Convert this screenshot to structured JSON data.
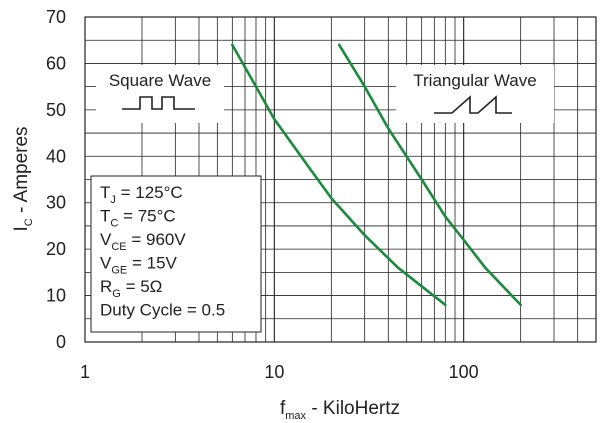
{
  "chart_data": {
    "type": "line",
    "title": "",
    "xscale": "log",
    "xlim": [
      1,
      500
    ],
    "ylim": [
      0,
      70
    ],
    "grid": true,
    "x_ticks": [
      {
        "value": 1,
        "label": "1"
      },
      {
        "value": 10,
        "label": "10"
      },
      {
        "value": 100,
        "label": "100"
      }
    ],
    "y_ticks": [
      {
        "value": 0,
        "label": "0"
      },
      {
        "value": 10,
        "label": "10"
      },
      {
        "value": 20,
        "label": "20"
      },
      {
        "value": 30,
        "label": "30"
      },
      {
        "value": 40,
        "label": "40"
      },
      {
        "value": 50,
        "label": "50"
      },
      {
        "value": 60,
        "label": "60"
      },
      {
        "value": 70,
        "label": "70"
      }
    ],
    "xlabel": {
      "main": "f",
      "sub": "max",
      "rest": " - KiloHertz"
    },
    "ylabel": {
      "main": "I",
      "sub": "C",
      "rest": " - Amperes"
    },
    "series": [
      {
        "name": "Square Wave",
        "color": "#1a8a3c",
        "points": [
          {
            "x": 6,
            "y": 64
          },
          {
            "x": 8,
            "y": 55
          },
          {
            "x": 10,
            "y": 48
          },
          {
            "x": 15,
            "y": 38
          },
          {
            "x": 20,
            "y": 31
          },
          {
            "x": 30,
            "y": 23
          },
          {
            "x": 45,
            "y": 16
          },
          {
            "x": 60,
            "y": 12
          },
          {
            "x": 80,
            "y": 8
          }
        ]
      },
      {
        "name": "Triangular Wave",
        "color": "#1a8a3c",
        "points": [
          {
            "x": 22,
            "y": 64
          },
          {
            "x": 30,
            "y": 55
          },
          {
            "x": 40,
            "y": 46
          },
          {
            "x": 60,
            "y": 35
          },
          {
            "x": 80,
            "y": 27
          },
          {
            "x": 100,
            "y": 22
          },
          {
            "x": 130,
            "y": 16
          },
          {
            "x": 200,
            "y": 8
          }
        ]
      }
    ],
    "conditions": [
      {
        "main": "T",
        "sub": "J",
        "rest": " = 125°C"
      },
      {
        "main": "T",
        "sub": "C",
        "rest": " = 75°C"
      },
      {
        "main": "V",
        "sub": "CE",
        "rest": " = 960V"
      },
      {
        "main": "V",
        "sub": "GE",
        "rest": " = 15V"
      },
      {
        "main": "R",
        "sub": "G",
        "rest": " = 5Ω"
      },
      {
        "main": "Duty Cycle = 0.5",
        "sub": "",
        "rest": ""
      }
    ]
  }
}
